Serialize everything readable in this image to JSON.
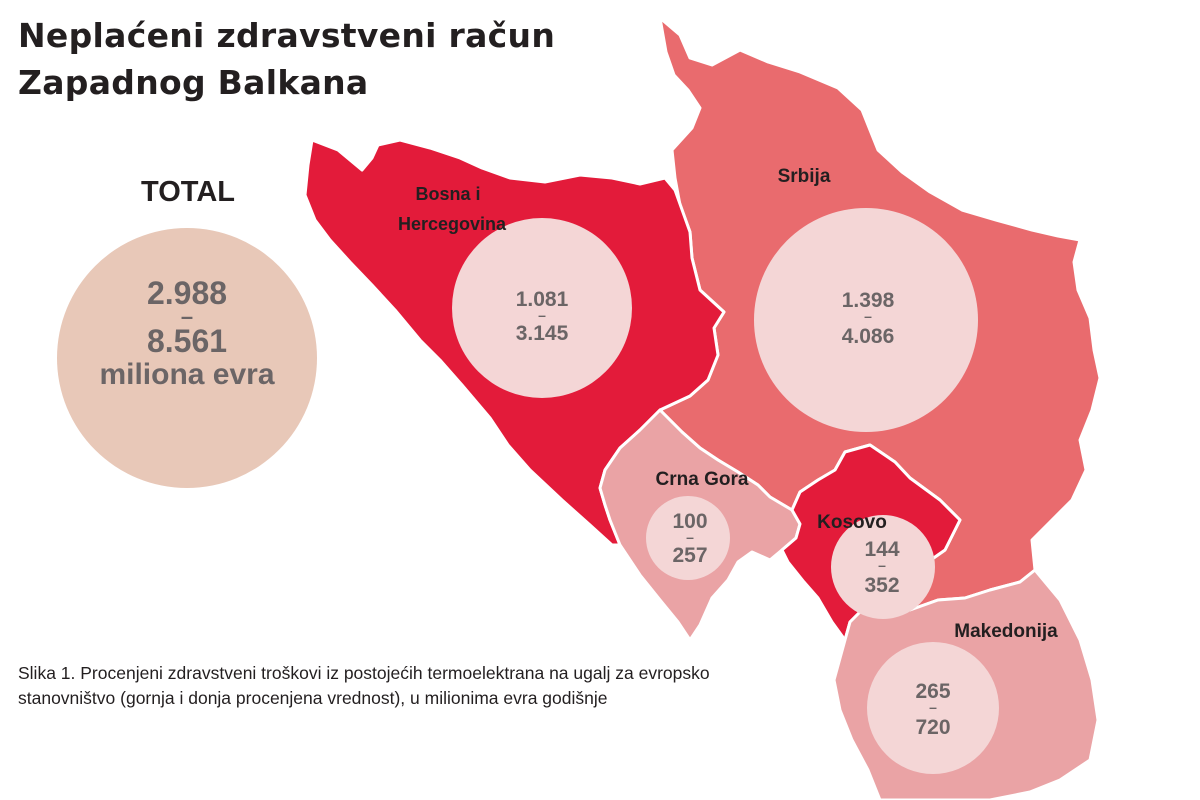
{
  "title": {
    "line1": "Neplaćeni zdravstveni račun",
    "line2": "Zapadnog Balkana"
  },
  "total": {
    "label": "TOTAL",
    "low": "2.988",
    "dash": "–",
    "high": "8.561",
    "unit": "miliona evra",
    "color": "#e8c8b8"
  },
  "caption": "Slika 1. Procenjeni zdravstveni troškovi iz postojećih termoelektrana na ugalj za evropsko stanovništvo (gornja i donja procenjena vrednost), u milionima evra godišnje",
  "colors": {
    "dark_red": "#e31b3a",
    "medium_red": "#e96b6e",
    "light_pink": "#eaa3a5",
    "circle_fill": "#f4d6d6",
    "border": "#ffffff"
  },
  "regions": [
    {
      "id": "bih",
      "name_lines": [
        "Bosna i",
        "Hercegovina"
      ],
      "low": "1.081",
      "dash": "–",
      "high": "3.145",
      "fill": "#e31b3a"
    },
    {
      "id": "srbija",
      "name_lines": [
        "Srbija"
      ],
      "low": "1.398",
      "dash": "–",
      "high": "4.086",
      "fill": "#e96b6e"
    },
    {
      "id": "crna-gora",
      "name_lines": [
        "Crna Gora"
      ],
      "low": "100",
      "dash": "–",
      "high": "257",
      "fill": "#eaa3a5"
    },
    {
      "id": "kosovo",
      "name_lines": [
        "Kosovo"
      ],
      "low": "144",
      "dash": "–",
      "high": "352",
      "fill": "#e31b3a"
    },
    {
      "id": "makedonija",
      "name_lines": [
        "Makedonija"
      ],
      "low": "265",
      "dash": "–",
      "high": "720",
      "fill": "#eaa3a5"
    }
  ]
}
